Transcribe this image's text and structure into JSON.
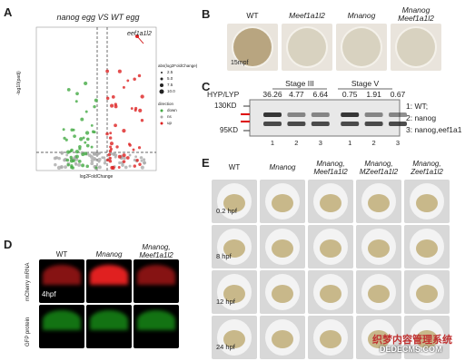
{
  "panels": {
    "A": {
      "letter": "A",
      "title": "nanog egg VS WT egg",
      "annotation": "eef1a1l2",
      "x_label": "log2FoldChange",
      "y_label": "-log10(padj)",
      "legend_size_title": "abs(log2FoldChange)",
      "legend_sizes": [
        "2.5",
        "5.0",
        "7.5",
        "10.0"
      ],
      "legend_dir_title": "direction",
      "legend_dirs": [
        "down",
        "ns",
        "up"
      ]
    },
    "B": {
      "letter": "B",
      "columns": [
        [
          "WT"
        ],
        [
          "Meef1a1l2"
        ],
        [
          "Mnanog"
        ],
        [
          "Mnanog",
          "Meef1a1l2"
        ]
      ],
      "stage": "15mpf"
    },
    "C": {
      "letter": "C",
      "ratio_label": "HYP/LYP",
      "ratios": [
        "36.26",
        "4.77",
        "6.64",
        "0.75",
        "1.91",
        "0.67"
      ],
      "stages": [
        "Stage III",
        "Stage V"
      ],
      "markers": [
        "130KD",
        "95KD"
      ],
      "lanes": [
        "1",
        "2",
        "3",
        "1",
        "2",
        "3"
      ],
      "legend": [
        "1: WT;",
        "2: nanog",
        "3: nanog,eef1a1"
      ]
    },
    "D": {
      "letter": "D",
      "columns": [
        [
          "WT"
        ],
        [
          "Mnanog"
        ],
        [
          "Mnanog,",
          "Meef1a1l2"
        ]
      ],
      "rows": [
        "mCherry mRNA",
        "GFP protein"
      ],
      "stage": "4hpf"
    },
    "E": {
      "letter": "E",
      "columns": [
        [
          "WT"
        ],
        [
          "Mnanog"
        ],
        [
          "Mnanog,",
          "Meef1a1l2"
        ],
        [
          "Mnanog,",
          "MZeef1a1l2"
        ],
        [
          "Mnanog,",
          "Zeef1a1l2"
        ]
      ],
      "rows": [
        "0.2 hpf",
        "8 hpf",
        "12 hpf",
        "24 hpf"
      ]
    }
  },
  "watermark": [
    "织梦内容管理系统",
    "DEDECMS.COM"
  ]
}
